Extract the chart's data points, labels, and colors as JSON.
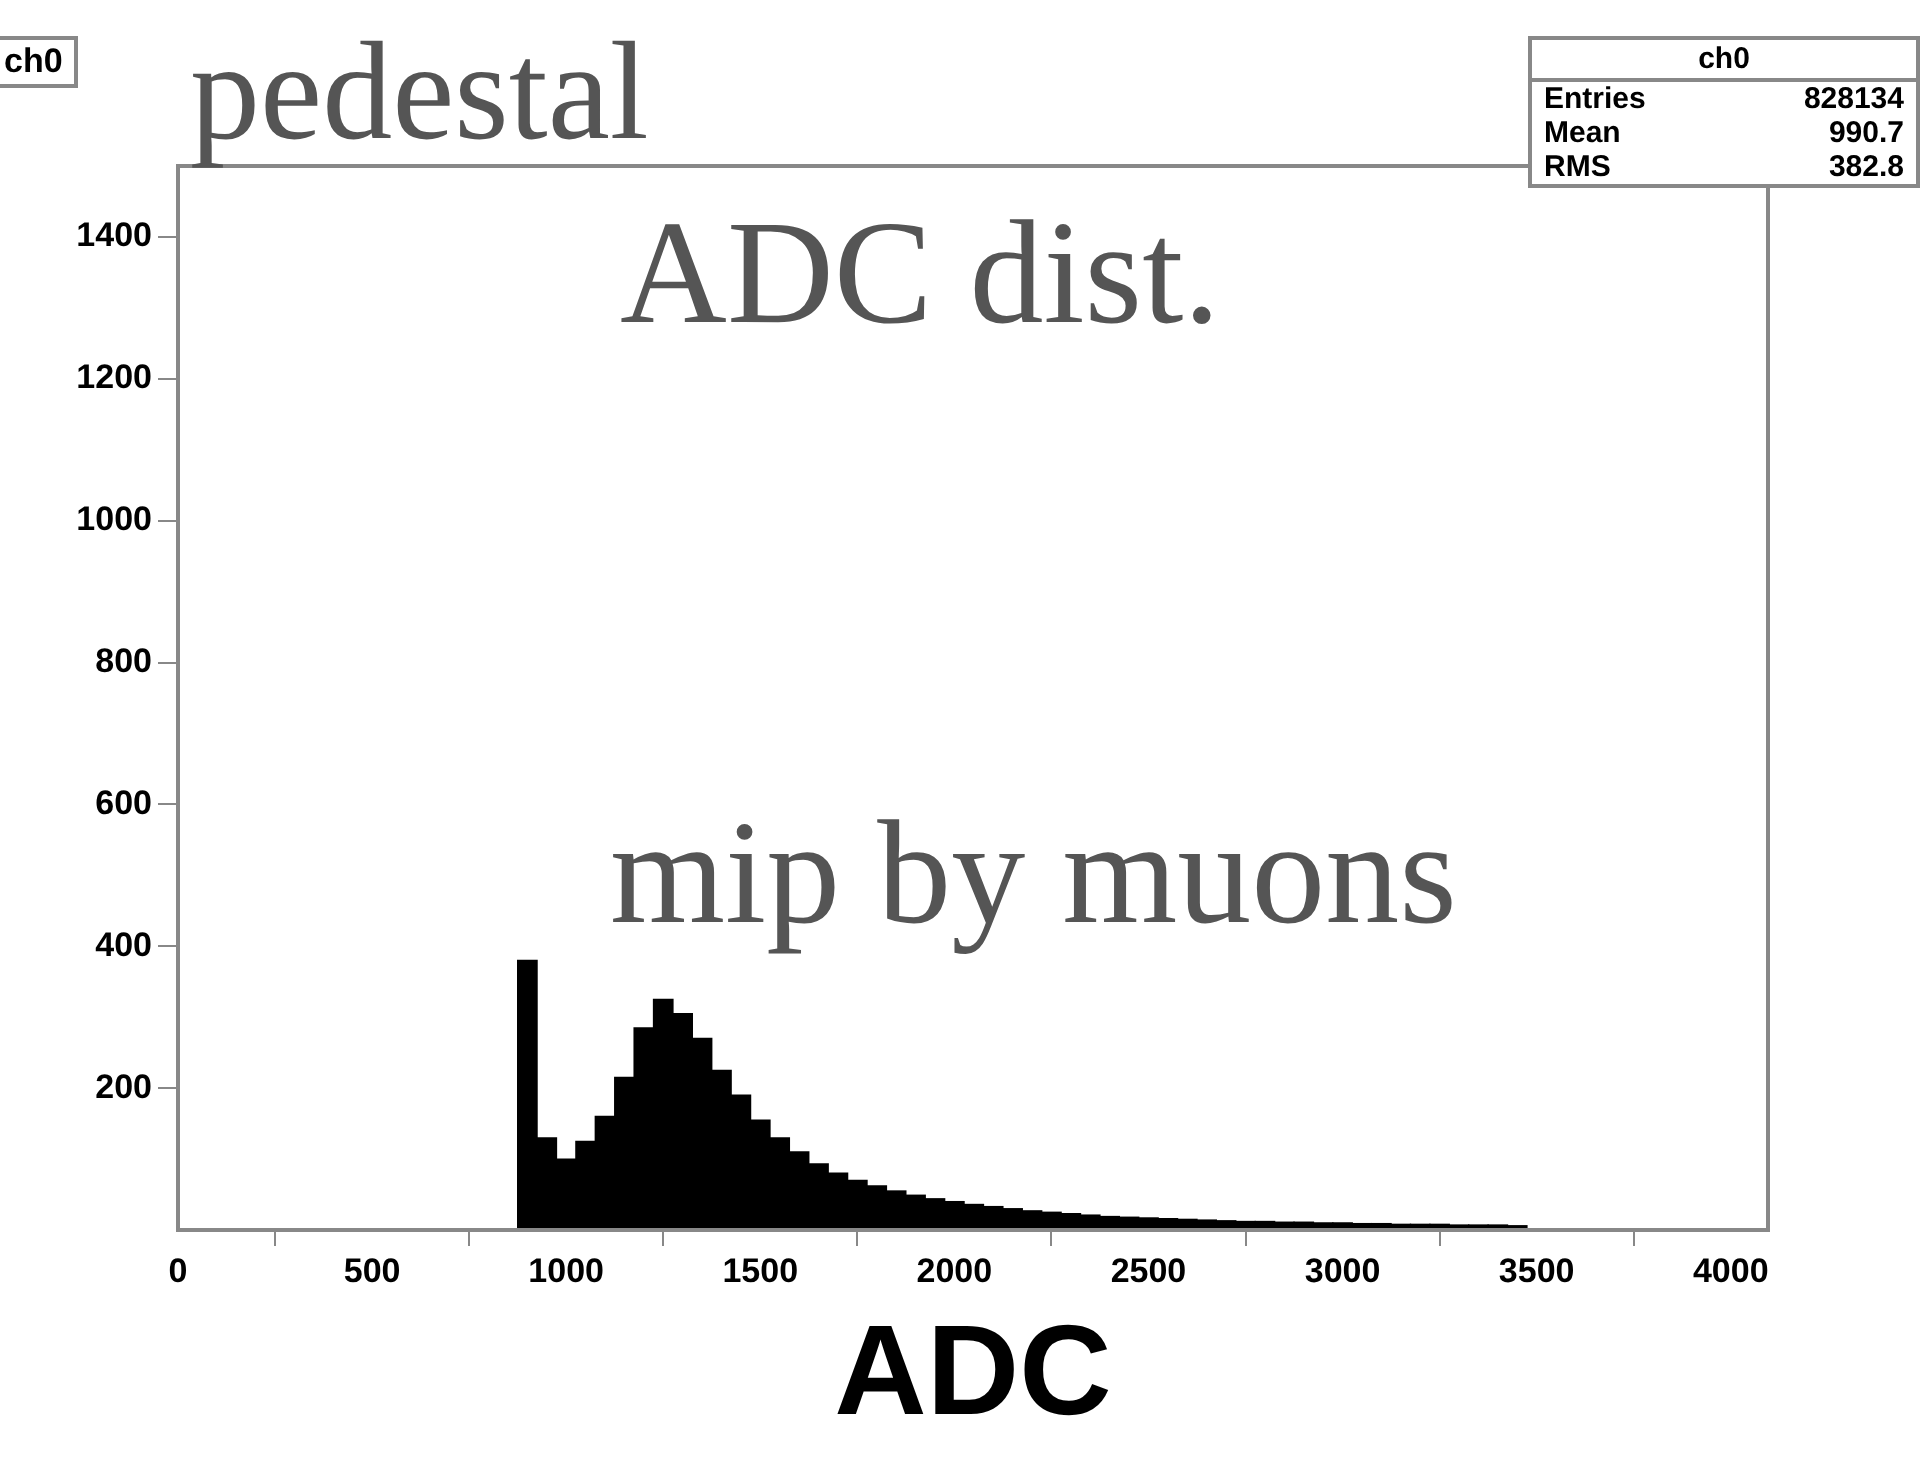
{
  "chart_data": {
    "type": "histogram",
    "title": "ch0",
    "xlabel": "ADC",
    "annotations": [
      "pedestal",
      "ADC dist.",
      "mip by muons",
      "ch0",
      "Entries",
      "828134",
      "Mean",
      "990.7",
      "RMS",
      "382.8"
    ],
    "bins": [
      775,
      825,
      875,
      925,
      975,
      1025,
      1075,
      1125,
      1175,
      1225,
      1275,
      1325,
      1375,
      1425,
      1475,
      1525,
      1575,
      1625,
      1675,
      1725,
      1775,
      1825,
      1875,
      1925,
      1975,
      2025,
      2075,
      2125,
      2175,
      2225,
      2275,
      2325,
      2375,
      2425,
      2475,
      2525,
      2575,
      2625,
      2675,
      2725,
      2775,
      2825,
      2875,
      2925,
      2975,
      3025,
      3075,
      3125,
      3175,
      3225,
      3275,
      3325,
      3375,
      3425,
      3475
    ],
    "values": [
      null,
      null,
      380,
      130,
      100,
      125,
      160,
      215,
      285,
      325,
      305,
      270,
      225,
      190,
      155,
      130,
      110,
      93,
      80,
      70,
      62,
      55,
      49,
      44,
      40,
      36,
      33,
      30,
      27,
      25,
      23,
      21,
      19,
      18,
      17,
      16,
      15,
      14,
      13,
      12,
      12,
      11,
      11,
      10,
      10,
      9,
      9,
      8,
      8,
      8,
      7,
      7,
      7,
      6
    ],
    "color": "#000000",
    "xlim": [
      0,
      4096
    ],
    "xticks": [
      0,
      500,
      1000,
      1500,
      2000,
      2500,
      3000,
      3500,
      4000
    ],
    "ylim": [
      0,
      1500
    ],
    "yticks": [
      200,
      400,
      600,
      800,
      1000,
      1200,
      1400
    ]
  }
}
